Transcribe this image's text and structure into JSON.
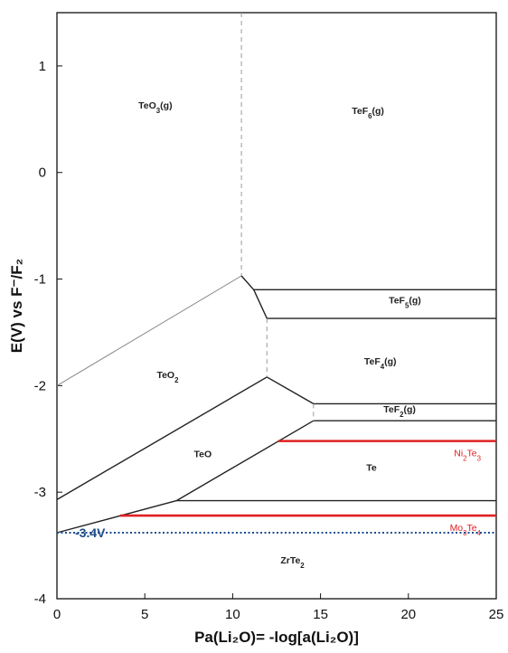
{
  "chart_data": {
    "type": "line",
    "xlabel": "Pa(Li₂O)= -log[a(Li₂O)]",
    "ylabel": "E(V) vs F⁻/F₂",
    "xlim": [
      0,
      25
    ],
    "ylim": [
      -4,
      1.5
    ],
    "x_ticks": [
      0,
      5,
      10,
      15,
      20,
      25
    ],
    "y_ticks": [
      -4,
      -3,
      -2,
      -1,
      0,
      1
    ],
    "boundaries": [
      {
        "name": "TeO3-TeO2",
        "style": "thin",
        "points": [
          [
            0,
            -2.0
          ],
          [
            10.5,
            -0.97
          ]
        ]
      },
      {
        "name": "TeO2-TeF4-top",
        "style": "solid",
        "points": [
          [
            10.5,
            -0.97
          ],
          [
            11.2,
            -1.1
          ],
          [
            25,
            -1.1
          ]
        ]
      },
      {
        "name": "TeF5-TeF4",
        "style": "solid",
        "points": [
          [
            11.2,
            -1.1
          ],
          [
            11.95,
            -1.37
          ],
          [
            25,
            -1.37
          ]
        ]
      },
      {
        "name": "TeO2-TeO",
        "style": "solid",
        "points": [
          [
            0,
            -3.07
          ],
          [
            11.95,
            -1.92
          ],
          [
            14.6,
            -2.17
          ],
          [
            25,
            -2.17
          ]
        ]
      },
      {
        "name": "TeF2-Te",
        "style": "solid",
        "points": [
          [
            14.6,
            -2.33
          ],
          [
            25,
            -2.33
          ]
        ]
      },
      {
        "name": "TeO-Te",
        "style": "solid",
        "points": [
          [
            6.8,
            -3.08
          ],
          [
            14.6,
            -2.33
          ]
        ]
      },
      {
        "name": "Te-ZrTe2",
        "style": "solid",
        "points": [
          [
            6.8,
            -3.08
          ],
          [
            25,
            -3.08
          ]
        ]
      },
      {
        "name": "TeO-ZrTe2",
        "style": "solid",
        "points": [
          [
            0,
            -3.38
          ],
          [
            6.8,
            -3.08
          ]
        ]
      },
      {
        "name": "vertical-dashed",
        "style": "dashed",
        "points": [
          [
            10.5,
            1.5
          ],
          [
            10.5,
            -0.97
          ]
        ]
      },
      {
        "name": "vertical-dashed-2",
        "style": "dashed",
        "points": [
          [
            11.95,
            -1.37
          ],
          [
            11.95,
            -1.92
          ]
        ]
      },
      {
        "name": "vertical-dashed-3",
        "style": "dashed",
        "points": [
          [
            14.6,
            -2.17
          ],
          [
            14.6,
            -2.33
          ]
        ]
      }
    ],
    "red_lines": [
      {
        "label": "Ni₂Te₃",
        "y": -2.52,
        "x_start": 12.6,
        "x_end": 25
      },
      {
        "label": "Mo₃Te₄",
        "y": -3.22,
        "x_start": 3.6,
        "x_end": 25
      }
    ],
    "reference_line": {
      "label": "-3.4V",
      "y": -3.38,
      "x_start": 0,
      "x_end": 25
    },
    "regions": [
      {
        "label": "TeO₃(g)",
        "x": 5.6,
        "y": 0.6
      },
      {
        "label": "TeF₆(g)",
        "x": 17.7,
        "y": 0.55
      },
      {
        "label": "TeF₅(g)",
        "x": 19.8,
        "y": -1.23
      },
      {
        "label": "TeO₂",
        "x": 6.3,
        "y": -1.93
      },
      {
        "label": "TeF₄(g)",
        "x": 18.4,
        "y": -1.8
      },
      {
        "label": "TeF₂(g)",
        "x": 19.5,
        "y": -2.25
      },
      {
        "label": "TeO",
        "x": 8.3,
        "y": -2.67
      },
      {
        "label": "Te",
        "x": 17.9,
        "y": -2.8
      },
      {
        "label": "ZrTe₂",
        "x": 13.4,
        "y": -3.67
      }
    ]
  }
}
